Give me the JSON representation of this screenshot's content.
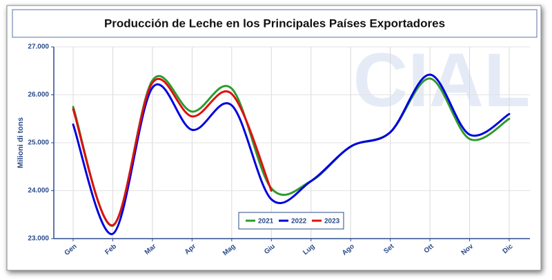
{
  "chart_data": {
    "type": "line",
    "title": "Producción de Leche en los Principales Países Exportadores",
    "y_label": "Milioni di tons",
    "watermark": "CIAL",
    "categories": [
      "Gen",
      "Feb",
      "Mar",
      "Apr",
      "Mag",
      "Giu",
      "Lug",
      "Ago",
      "Set",
      "Ott",
      "Nov",
      "Dic"
    ],
    "series": [
      {
        "name": "2021",
        "color": "#2e9a2e",
        "values": [
          25750,
          23270,
          26300,
          25650,
          26130,
          24050,
          24200,
          24920,
          25220,
          26340,
          25080,
          25500
        ]
      },
      {
        "name": "2022",
        "color": "#0000dd",
        "values": [
          25380,
          23100,
          26150,
          25270,
          25780,
          23820,
          24200,
          24920,
          25220,
          26420,
          25170,
          25600
        ]
      },
      {
        "name": "2023",
        "color": "#e01010",
        "values": [
          25700,
          23280,
          26250,
          25550,
          26020,
          24000,
          null,
          null,
          null,
          null,
          null,
          null
        ]
      }
    ],
    "ylim": [
      23000,
      27000
    ],
    "yticks": [
      {
        "value": 23000,
        "label": "23.000"
      },
      {
        "value": 24000,
        "label": "24.000"
      },
      {
        "value": 25000,
        "label": "25.000"
      },
      {
        "value": 26000,
        "label": "26.000"
      },
      {
        "value": 27000,
        "label": "27.000"
      }
    ],
    "grid": true,
    "legend": "bottom"
  }
}
